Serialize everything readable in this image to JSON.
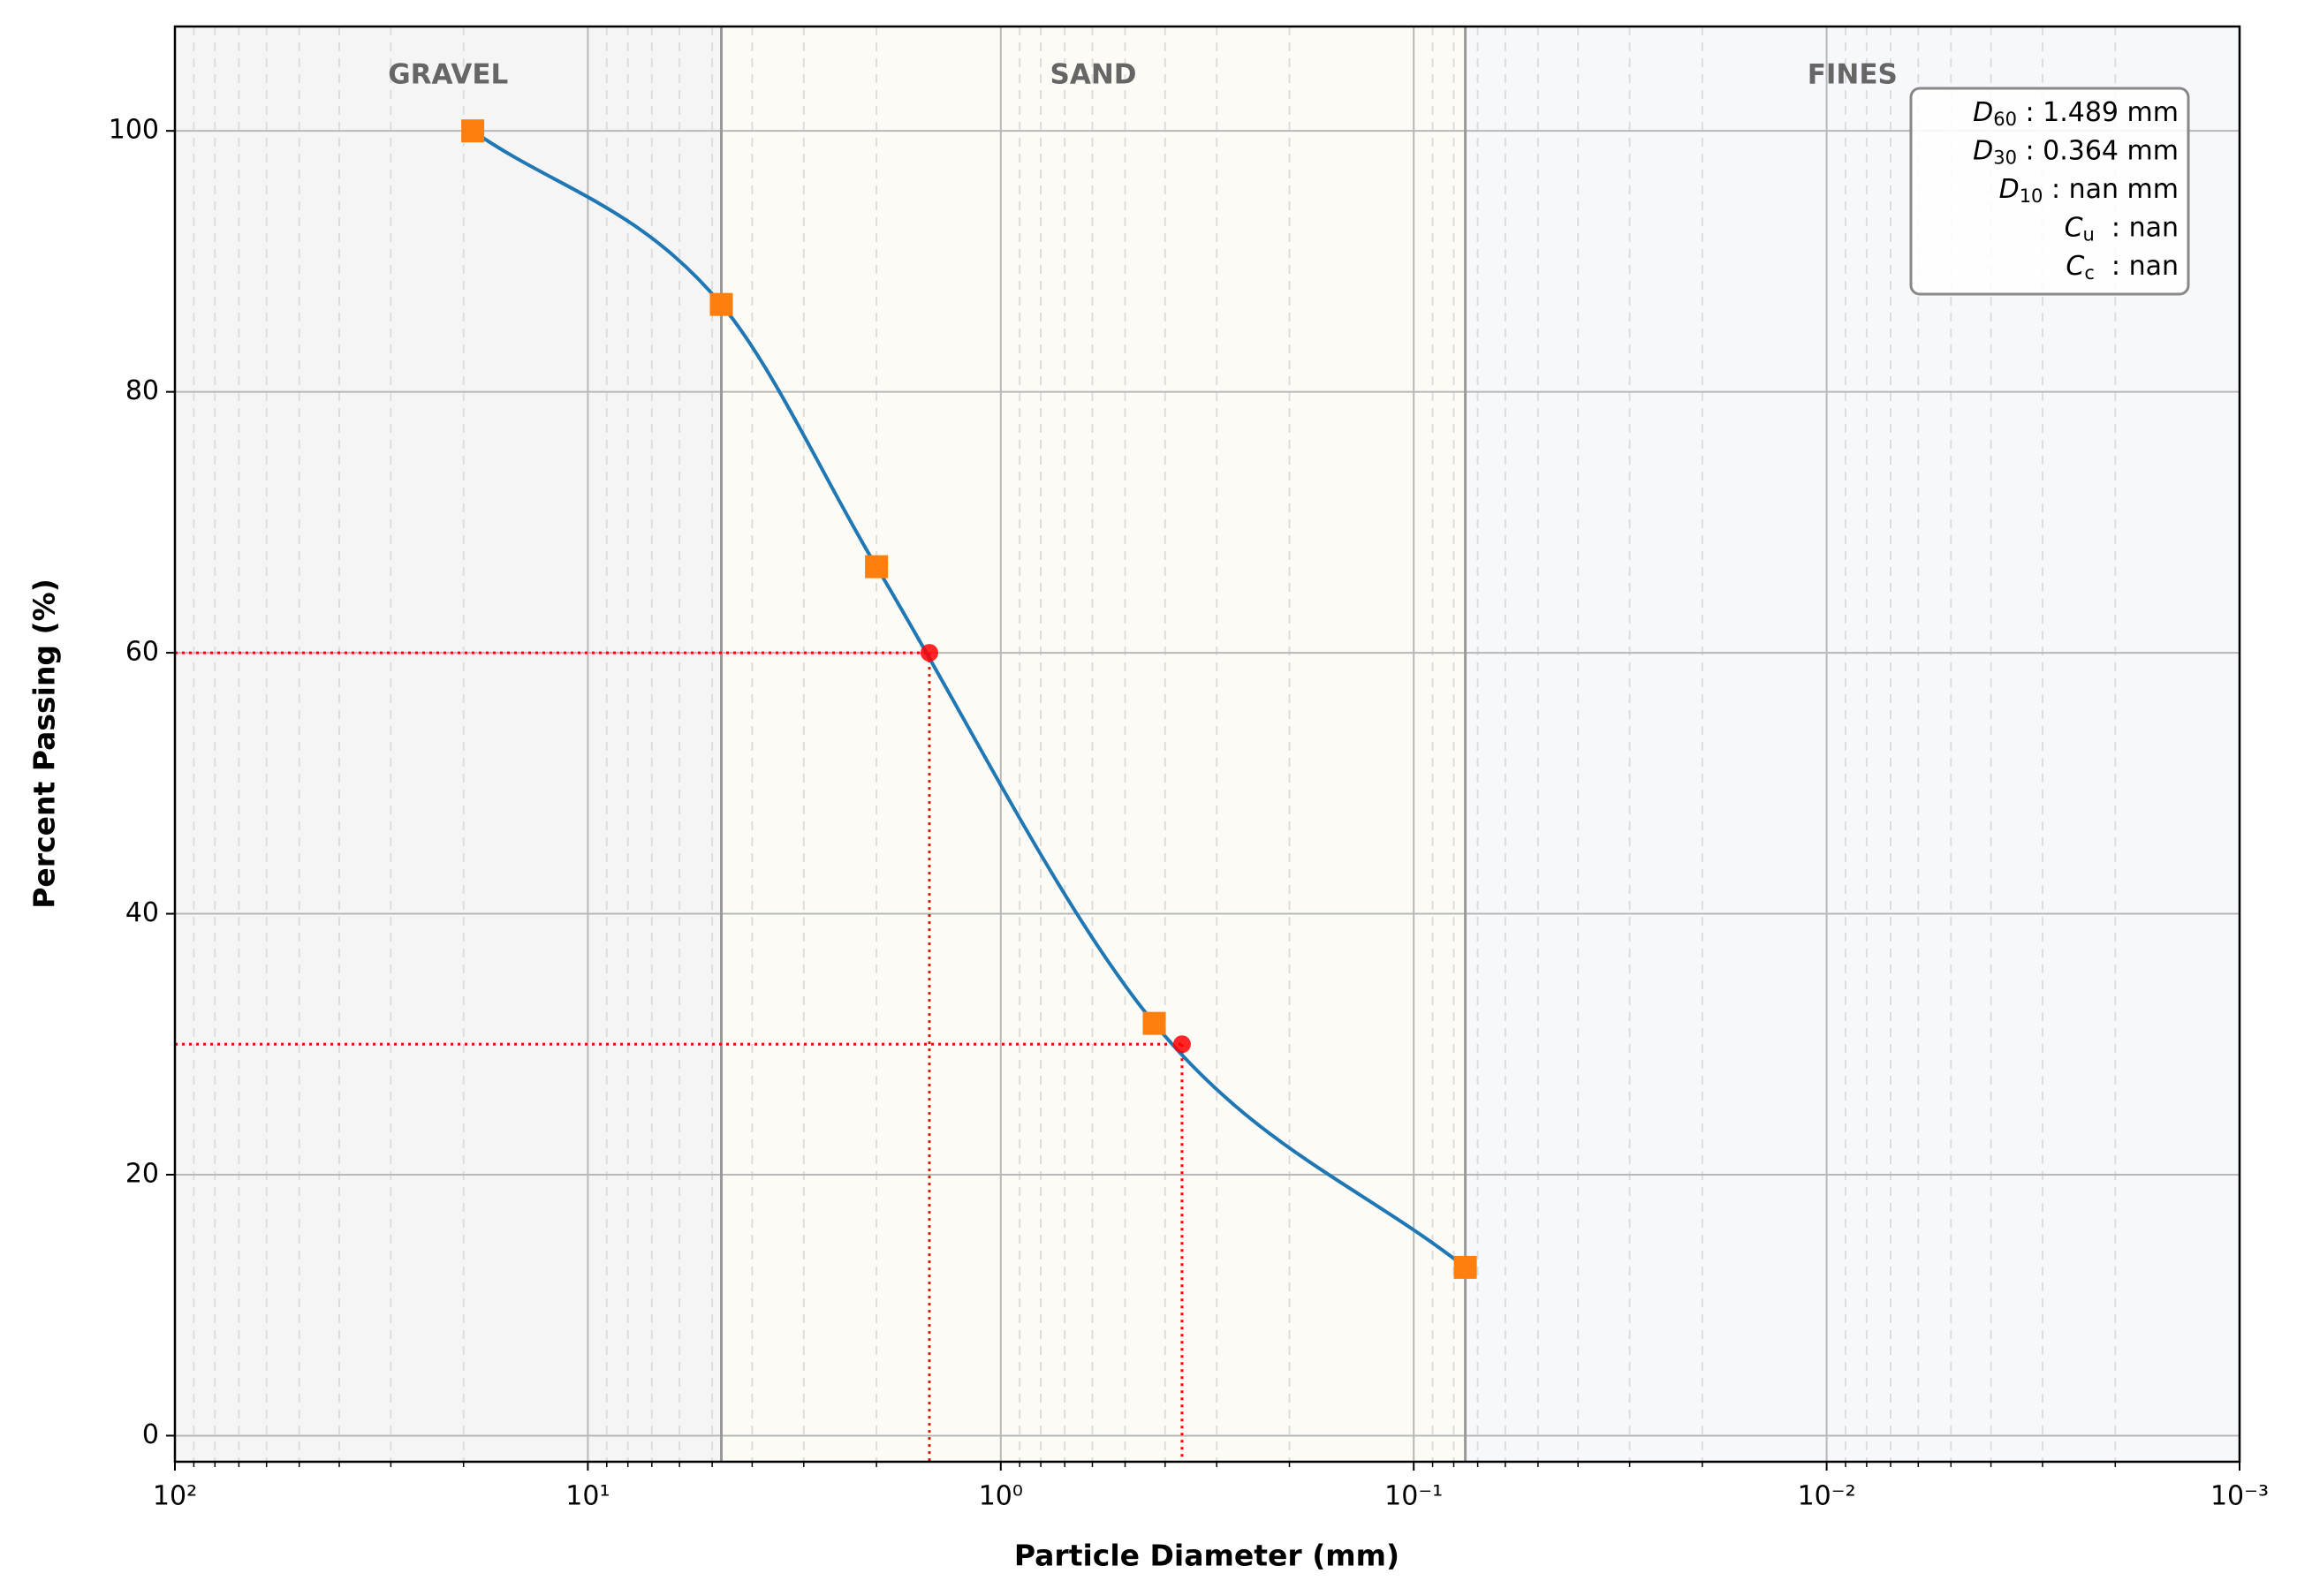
{
  "chart_data": {
    "type": "gradation",
    "x_label": "Particle Diameter (mm)",
    "y_label": "Percent Passing (%)",
    "xscale": "log",
    "xlim": [
      100,
      0.001
    ],
    "ylim": [
      -2,
      108
    ],
    "xticks": [
      {
        "value": 100,
        "label": "10²"
      },
      {
        "value": 10,
        "label": "10¹"
      },
      {
        "value": 1,
        "label": "10⁰"
      },
      {
        "value": 0.1,
        "label": "10⁻¹"
      },
      {
        "value": 0.01,
        "label": "10⁻²"
      },
      {
        "value": 0.001,
        "label": "10⁻³"
      }
    ],
    "xminorticks": [
      90,
      80,
      70,
      60,
      50,
      40,
      30,
      20,
      9,
      8,
      7,
      6,
      5,
      4,
      3,
      2,
      0.9,
      0.8,
      0.7,
      0.6,
      0.5,
      0.4,
      0.3,
      0.2,
      0.09,
      0.08,
      0.07,
      0.06,
      0.05,
      0.04,
      0.03,
      0.02,
      0.009,
      0.008,
      0.007,
      0.006,
      0.005,
      0.004,
      0.003,
      0.002
    ],
    "yticks": [
      0,
      20,
      40,
      60,
      80,
      100
    ],
    "grid": true,
    "regions": [
      {
        "name": "GRAVEL",
        "from": 100,
        "to": 4.75,
        "color": "#f5f5f5"
      },
      {
        "name": "SAND",
        "from": 4.75,
        "to": 0.075,
        "color": "#fcfbf6"
      },
      {
        "name": "FINES",
        "from": 0.075,
        "to": 0.001,
        "color": "#f6f8fc"
      }
    ],
    "series": [
      {
        "name": "Percent Passing",
        "color": "#1f77b4",
        "marker_color": "#ff7f0e",
        "x": [
          19,
          4.75,
          2,
          0.425,
          0.075
        ],
        "values": [
          100,
          86.7,
          66.6,
          31.6,
          12.9
        ]
      }
    ],
    "characteristic_points": {
      "color": "#ff0000",
      "points": [
        {
          "x": 1.489,
          "y": 60
        },
        {
          "x": 0.364,
          "y": 30
        }
      ]
    },
    "annotation": [
      {
        "symbol": "D",
        "subscript": "60",
        "text": " : 1.489 mm"
      },
      {
        "symbol": "D",
        "subscript": "30",
        "text": " : 0.364 mm"
      },
      {
        "symbol": "D",
        "subscript": "10",
        "text": " : nan mm"
      },
      {
        "symbol": "C",
        "subscript": "u",
        "text": "  : nan"
      },
      {
        "symbol": "C",
        "subscript": "c",
        "text": "  : nan"
      }
    ]
  }
}
